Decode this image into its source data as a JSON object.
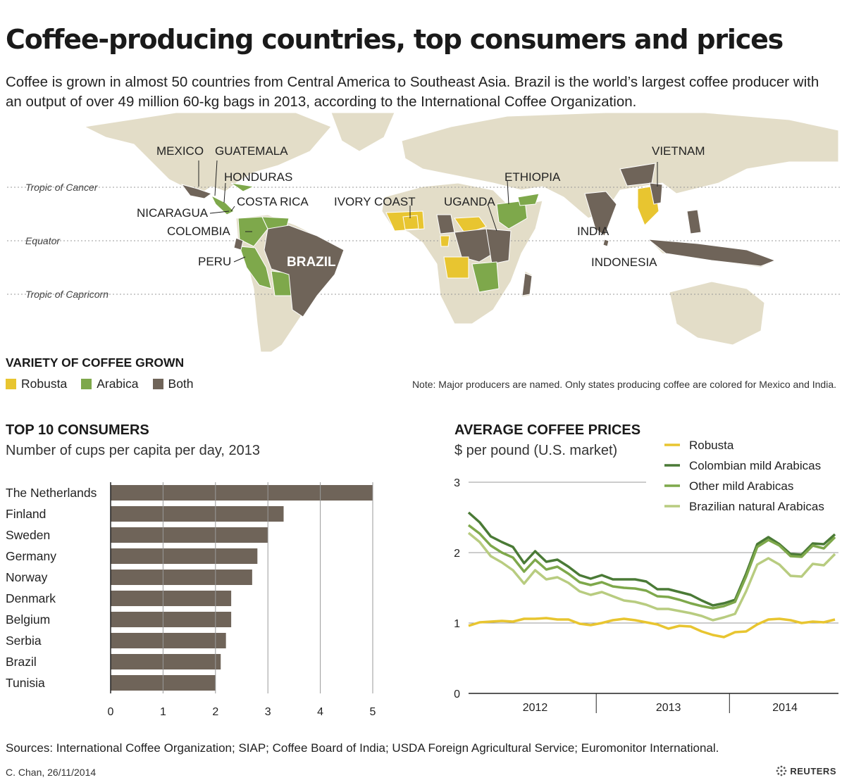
{
  "header": {
    "title": "Coffee-producing countries, top consumers and prices",
    "intro": "Coffee is grown in almost 50 countries from Central America to Southeast Asia. Brazil is the world’s largest coffee producer with an output of over 49 million 60-kg bags in 2013, according to the International Coffee Organization."
  },
  "map": {
    "tropics": [
      "Tropic of Cancer",
      "Equator",
      "Tropic of Capricorn"
    ],
    "labels": {
      "mexico": "MEXICO",
      "guatemala": "GUATEMALA",
      "honduras": "HONDURAS",
      "nicaragua": "NICARAGUA",
      "costa_rica": "COSTA RICA",
      "colombia": "COLOMBIA",
      "peru": "PERU",
      "brazil": "BRAZIL",
      "ivory_coast": "IVORY COAST",
      "uganda": "UGANDA",
      "ethiopia": "ETHIOPIA",
      "india": "INDIA",
      "indonesia": "INDONESIA",
      "vietnam": "VIETNAM"
    },
    "colors": {
      "land": "#e3ddc8",
      "robusta": "#e8c530",
      "arabica": "#7ea84b",
      "both": "#6f6459"
    },
    "legend": {
      "title": "VARIETY OF COFFEE GROWN",
      "items": [
        {
          "label": "Robusta",
          "color": "#e8c530"
        },
        {
          "label": "Arabica",
          "color": "#7ea84b"
        },
        {
          "label": "Both",
          "color": "#6f6459"
        }
      ]
    },
    "note": "Note: Major producers are named. Only states producing coffee are colored for Mexico and India."
  },
  "consumers": {
    "title": "TOP 10 CONSUMERS",
    "subtitle": "Number of cups per capita per day, 2013"
  },
  "prices": {
    "title": "AVERAGE COFFEE PRICES",
    "subtitle": "$ per pound (U.S. market)"
  },
  "chart_data": [
    {
      "type": "bar",
      "orientation": "horizontal",
      "title": "TOP 10 CONSUMERS",
      "subtitle": "Number of cups per capita per day, 2013",
      "categories": [
        "The Netherlands",
        "Finland",
        "Sweden",
        "Germany",
        "Norway",
        "Denmark",
        "Belgium",
        "Serbia",
        "Brazil",
        "Tunisia"
      ],
      "values": [
        5.0,
        3.3,
        3.0,
        2.8,
        2.7,
        2.3,
        2.3,
        2.2,
        2.1,
        2.0
      ],
      "xlim": [
        0,
        5
      ],
      "xticks": [
        "0",
        "1",
        "2",
        "3",
        "4",
        "5"
      ],
      "grid": true,
      "bar_color": "#6f6459"
    },
    {
      "type": "line",
      "title": "AVERAGE COFFEE PRICES",
      "subtitle": "$ per pound (U.S. market)",
      "x_labels": [
        "2012",
        "2013",
        "2014"
      ],
      "x": [
        "2012-01",
        "2012-02",
        "2012-03",
        "2012-04",
        "2012-05",
        "2012-06",
        "2012-07",
        "2012-08",
        "2012-09",
        "2012-10",
        "2012-11",
        "2012-12",
        "2013-01",
        "2013-02",
        "2013-03",
        "2013-04",
        "2013-05",
        "2013-06",
        "2013-07",
        "2013-08",
        "2013-09",
        "2013-10",
        "2013-11",
        "2013-12",
        "2014-01",
        "2014-02",
        "2014-03",
        "2014-04",
        "2014-05",
        "2014-06",
        "2014-07",
        "2014-08",
        "2014-09",
        "2014-10"
      ],
      "ylim": [
        0,
        3
      ],
      "yticks": [
        "0",
        "1",
        "2",
        "3"
      ],
      "grid": true,
      "legend_position": "top-right",
      "series": [
        {
          "name": "Robusta",
          "color": "#e8c530",
          "values": [
            0.96,
            1.01,
            1.02,
            1.03,
            1.02,
            1.06,
            1.06,
            1.07,
            1.05,
            1.05,
            0.99,
            0.97,
            1.0,
            1.04,
            1.06,
            1.04,
            1.01,
            0.98,
            0.92,
            0.96,
            0.95,
            0.88,
            0.83,
            0.8,
            0.87,
            0.88,
            0.98,
            1.05,
            1.06,
            1.04,
            1.0,
            1.02,
            1.01,
            1.05
          ]
        },
        {
          "name": "Colombian mild Arabicas",
          "color": "#4a7a36",
          "values": [
            2.57,
            2.43,
            2.23,
            2.15,
            2.08,
            1.85,
            2.02,
            1.87,
            1.9,
            1.8,
            1.68,
            1.63,
            1.68,
            1.62,
            1.62,
            1.62,
            1.59,
            1.48,
            1.48,
            1.44,
            1.4,
            1.32,
            1.25,
            1.28,
            1.33,
            1.7,
            2.12,
            2.22,
            2.12,
            1.98,
            1.97,
            2.13,
            2.12,
            2.26
          ]
        },
        {
          "name": "Other mild Arabicas",
          "color": "#7ea84b",
          "values": [
            2.39,
            2.27,
            2.1,
            2.0,
            1.93,
            1.73,
            1.9,
            1.76,
            1.8,
            1.7,
            1.58,
            1.54,
            1.58,
            1.52,
            1.5,
            1.49,
            1.46,
            1.38,
            1.37,
            1.33,
            1.28,
            1.24,
            1.21,
            1.24,
            1.3,
            1.66,
            2.08,
            2.18,
            2.1,
            1.95,
            1.94,
            2.1,
            2.06,
            2.22
          ]
        },
        {
          "name": "Brazilian natural Arabicas",
          "color": "#b8cc80",
          "values": [
            2.28,
            2.15,
            1.95,
            1.86,
            1.75,
            1.56,
            1.75,
            1.62,
            1.65,
            1.57,
            1.45,
            1.4,
            1.44,
            1.38,
            1.32,
            1.3,
            1.26,
            1.2,
            1.2,
            1.17,
            1.14,
            1.1,
            1.04,
            1.08,
            1.13,
            1.45,
            1.83,
            1.92,
            1.83,
            1.67,
            1.66,
            1.84,
            1.82,
            1.98
          ]
        }
      ]
    }
  ],
  "footer": {
    "sources": "Sources: International Coffee Organization; SIAP; Coffee Board of India; USDA Foreign Agricultural Service; Euromonitor International.",
    "credit": "C. Chan, 26/11/2014",
    "brand": "REUTERS"
  }
}
